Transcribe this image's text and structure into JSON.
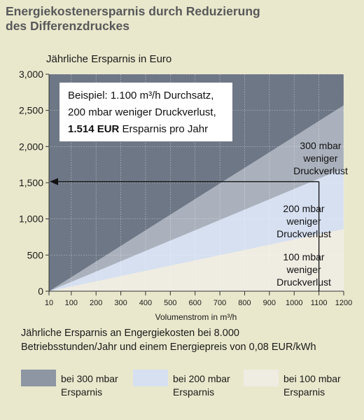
{
  "title_line1": "Energiekostenersparnis durch Reduzierung",
  "title_line2": "des Differenzdruckes",
  "caption_line1": "Jährliche Ersparnis an Engergiekosten bei 8.000",
  "caption_line2": "Betriebsstunden/Jahr und einem Energiepreis von 0,08 EUR/kWh",
  "legend": [
    {
      "label": "bei 300 mbar Ersparnis",
      "line1": "bei 300 mbar",
      "line2": "Ersparnis",
      "color": "#8d96a2"
    },
    {
      "label": "bei 200 mbar Ersparnis",
      "line1": "bei 200 mbar",
      "line2": "Ersparnis",
      "color": "#d6e0f1"
    },
    {
      "label": "bei 100 mbar Ersparnis",
      "line1": "bei 100 mbar",
      "line2": "Ersparnis",
      "color": "#efece2"
    }
  ],
  "colors": {
    "page_bg": "#e9e8cc",
    "title": "#58585a",
    "area_top": "#6e7786",
    "area_300": "#aab1bc",
    "area_200": "#d6e0f1",
    "area_100": "#efece2"
  },
  "chart_data": {
    "type": "area",
    "title": "",
    "ylabel": "Jährliche Ersparnis in Euro",
    "xlabel": "Volumenstrom in m³/h",
    "x_ticks": [
      10,
      100,
      200,
      300,
      400,
      500,
      600,
      700,
      800,
      900,
      1000,
      1100,
      1200
    ],
    "x_tick_labels": [
      "10",
      "100",
      "200",
      "300",
      "400",
      "500",
      "600",
      "700",
      "800",
      "900",
      "1000",
      "1100",
      "1200"
    ],
    "y_ticks": [
      0,
      500,
      1000,
      1500,
      2000,
      2500,
      3000
    ],
    "y_tick_labels": [
      "0",
      "500",
      "1,000",
      "1,500",
      "2,000",
      "2,500",
      "3,000"
    ],
    "xlim": [
      10,
      1200
    ],
    "ylim": [
      0,
      3000
    ],
    "grid": true,
    "series": [
      {
        "name": "300 mbar weniger Druckverlust",
        "label_lines": [
          "300 mbar",
          "weniger",
          "Druckverlust"
        ],
        "x": [
          10,
          1200
        ],
        "y": [
          0,
          2570
        ]
      },
      {
        "name": "200 mbar weniger Druckverlust",
        "label_lines": [
          "200 mbar",
          "weniger",
          "Druckverlust"
        ],
        "x": [
          10,
          1200
        ],
        "y": [
          0,
          1700
        ]
      },
      {
        "name": "100 mbar weniger Druckverlust",
        "label_lines": [
          "100 mbar",
          "weniger",
          "Druckverlust"
        ],
        "x": [
          10,
          1200
        ],
        "y": [
          0,
          860
        ]
      }
    ],
    "example_point": {
      "x": 1100,
      "y": 1514
    },
    "annotation": {
      "line1": "Beispiel: 1.100 m³/h Durchsatz,",
      "line2": "200 mbar weniger Druckverlust,",
      "line3_bold": "1.514 EUR",
      "line3_rest": " Ersparnis pro Jahr"
    }
  }
}
